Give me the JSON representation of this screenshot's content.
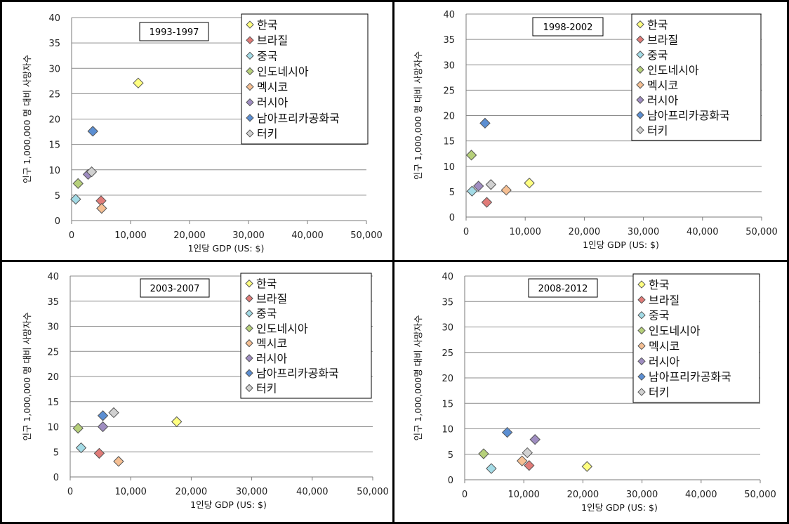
{
  "chart_data": [
    {
      "type": "scatter",
      "title": "1993-1997",
      "xlabel": "1인당 GDP (US: $)",
      "ylabel": "인구 1,000,000 명 대비 사망자수",
      "xlim": [
        0,
        50000
      ],
      "ylim": [
        0,
        40
      ],
      "xticks": [
        "0",
        "10,000",
        "20,000",
        "30,000",
        "40,000",
        "50,000"
      ],
      "yticks": [
        "0",
        "5",
        "10",
        "15",
        "20",
        "25",
        "30",
        "35",
        "40"
      ],
      "grid": "horizontal",
      "legend_position": "top-right",
      "series": [
        {
          "name": "한국",
          "color": "#ffff80",
          "points": [
            [
              11300,
              27.1
            ]
          ]
        },
        {
          "name": "브라질",
          "color": "#e07b78",
          "points": [
            [
              5000,
              3.9
            ]
          ]
        },
        {
          "name": "중국",
          "color": "#a3dbe6",
          "points": [
            [
              700,
              4.2
            ]
          ]
        },
        {
          "name": "인도네시아",
          "color": "#b6d07a",
          "points": [
            [
              1100,
              7.3
            ]
          ]
        },
        {
          "name": "멕시코",
          "color": "#f5bf93",
          "points": [
            [
              5100,
              2.4
            ]
          ]
        },
        {
          "name": "러시아",
          "color": "#9f8dc1",
          "points": [
            [
              2800,
              9.1
            ]
          ]
        },
        {
          "name": "남아프리카공화국",
          "color": "#5b8ed2",
          "points": [
            [
              3600,
              17.6
            ]
          ]
        },
        {
          "name": "터키",
          "color": "#d1d1d1",
          "points": [
            [
              3400,
              9.6
            ]
          ]
        }
      ]
    },
    {
      "type": "scatter",
      "title": "1998-2002",
      "xlabel": "1인당 GDP (US: $)",
      "ylabel": "인구 1,000,000 명 대비 사망자수",
      "xlim": [
        0,
        50000
      ],
      "ylim": [
        0,
        40
      ],
      "xticks": [
        "0",
        "10,000",
        "20,000",
        "30,000",
        "40,000",
        "50,000"
      ],
      "yticks": [
        "0",
        "5",
        "10",
        "15",
        "20",
        "25",
        "30",
        "35",
        "40"
      ],
      "grid": "horizontal",
      "legend_position": "top-right",
      "series": [
        {
          "name": "한국",
          "color": "#ffff80",
          "points": [
            [
              10700,
              6.7
            ]
          ]
        },
        {
          "name": "브라질",
          "color": "#e07b78",
          "points": [
            [
              3500,
              2.9
            ]
          ]
        },
        {
          "name": "중국",
          "color": "#a3dbe6",
          "points": [
            [
              1000,
              5.1
            ]
          ]
        },
        {
          "name": "인도네시아",
          "color": "#b6d07a",
          "points": [
            [
              900,
              12.2
            ]
          ]
        },
        {
          "name": "멕시코",
          "color": "#f5bf93",
          "points": [
            [
              6800,
              5.3
            ]
          ]
        },
        {
          "name": "러시아",
          "color": "#9f8dc1",
          "points": [
            [
              2100,
              6.1
            ]
          ]
        },
        {
          "name": "남아프리카공화국",
          "color": "#5b8ed2",
          "points": [
            [
              3200,
              18.5
            ]
          ]
        },
        {
          "name": "터키",
          "color": "#d1d1d1",
          "points": [
            [
              4200,
              6.4
            ]
          ]
        }
      ]
    },
    {
      "type": "scatter",
      "title": "2003-2007",
      "xlabel": "1인당 GDP (US: $)",
      "ylabel": "인구 1,000,000 명 대비 사망자수",
      "xlim": [
        0,
        50000
      ],
      "ylim": [
        0,
        40
      ],
      "xticks": [
        "0",
        "10,000",
        "20,000",
        "30,000",
        "40,000",
        "50,000"
      ],
      "yticks": [
        "0",
        "5",
        "10",
        "15",
        "20",
        "25",
        "30",
        "35",
        "40"
      ],
      "grid": "horizontal",
      "legend_position": "top-right",
      "series": [
        {
          "name": "한국",
          "color": "#ffff80",
          "points": [
            [
              17600,
              11.0
            ]
          ]
        },
        {
          "name": "브라질",
          "color": "#e07b78",
          "points": [
            [
              4800,
              4.7
            ]
          ]
        },
        {
          "name": "중국",
          "color": "#a3dbe6",
          "points": [
            [
              1800,
              5.8
            ]
          ]
        },
        {
          "name": "인도네시아",
          "color": "#b6d07a",
          "points": [
            [
              1300,
              9.7
            ]
          ]
        },
        {
          "name": "멕시코",
          "color": "#f5bf93",
          "points": [
            [
              8000,
              3.1
            ]
          ]
        },
        {
          "name": "러시아",
          "color": "#9f8dc1",
          "points": [
            [
              5400,
              10.0
            ]
          ]
        },
        {
          "name": "남아프리카공화국",
          "color": "#5b8ed2",
          "points": [
            [
              5400,
              12.2
            ]
          ]
        },
        {
          "name": "터키",
          "color": "#d1d1d1",
          "points": [
            [
              7200,
              12.8
            ]
          ]
        }
      ]
    },
    {
      "type": "scatter",
      "title": "2008-2012",
      "xlabel": "1인당 GDP (US: $)",
      "ylabel": "인구 1,000,000명 대비 사망자수",
      "xlim": [
        0,
        50000
      ],
      "ylim": [
        0,
        40
      ],
      "xticks": [
        "0",
        "10,000",
        "20,000",
        "30,000",
        "40,000",
        "50,000"
      ],
      "yticks": [
        "0",
        "5",
        "10",
        "15",
        "20",
        "25",
        "30",
        "35",
        "40"
      ],
      "grid": "horizontal",
      "legend_position": "top-right",
      "series": [
        {
          "name": "한국",
          "color": "#ffff80",
          "points": [
            [
              20700,
              2.6
            ]
          ]
        },
        {
          "name": "브라질",
          "color": "#e07b78",
          "points": [
            [
              10900,
              2.8
            ]
          ]
        },
        {
          "name": "중국",
          "color": "#a3dbe6",
          "points": [
            [
              4500,
              2.2
            ]
          ]
        },
        {
          "name": "인도네시아",
          "color": "#b6d07a",
          "points": [
            [
              3200,
              5.1
            ]
          ]
        },
        {
          "name": "멕시코",
          "color": "#f5bf93",
          "points": [
            [
              9700,
              3.7
            ]
          ]
        },
        {
          "name": "러시아",
          "color": "#9f8dc1",
          "points": [
            [
              11900,
              7.9
            ]
          ]
        },
        {
          "name": "남아프리카공화국",
          "color": "#5b8ed2",
          "points": [
            [
              7200,
              9.3
            ]
          ]
        },
        {
          "name": "터키",
          "color": "#d1d1d1",
          "points": [
            [
              10600,
              5.3
            ]
          ]
        }
      ]
    }
  ]
}
